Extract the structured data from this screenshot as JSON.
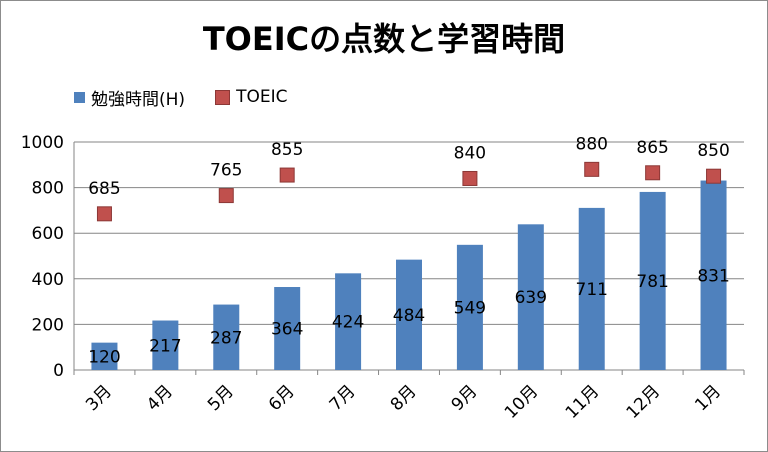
{
  "chart_data": {
    "type": "bar",
    "title": "TOEICの点数と学習時間",
    "categories": [
      "3月",
      "4月",
      "5月",
      "6月",
      "7月",
      "8月",
      "9月",
      "10月",
      "11月",
      "12月",
      "1月"
    ],
    "ylim": [
      0,
      1000
    ],
    "yticks": [
      0,
      200,
      400,
      600,
      800,
      1000
    ],
    "grid": true,
    "legend_position": "top-left",
    "series": [
      {
        "name": "勉強時間(H)",
        "type": "bar",
        "color": "#4f81bd",
        "values": [
          120,
          217,
          287,
          364,
          424,
          484,
          549,
          639,
          711,
          781,
          831
        ]
      },
      {
        "name": "TOEIC",
        "type": "scatter",
        "color": "#c0504d",
        "marker": "square",
        "values": [
          685,
          null,
          765,
          855,
          null,
          null,
          840,
          null,
          880,
          865,
          850
        ]
      }
    ]
  }
}
